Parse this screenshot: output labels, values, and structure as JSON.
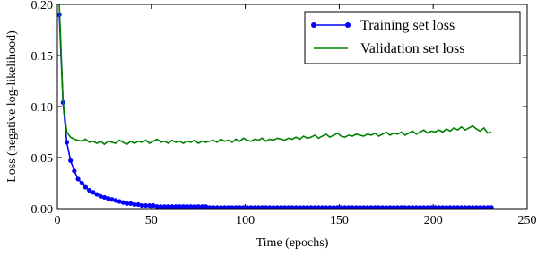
{
  "chart_data": {
    "type": "line",
    "xlabel": "Time (epochs)",
    "ylabel": "Loss (negative log-likelihood)",
    "x": [
      1,
      3,
      5,
      7,
      9,
      11,
      13,
      15,
      17,
      19,
      21,
      23,
      25,
      27,
      29,
      31,
      33,
      35,
      37,
      39,
      41,
      43,
      45,
      47,
      49,
      51,
      53,
      55,
      57,
      59,
      61,
      63,
      65,
      67,
      69,
      71,
      73,
      75,
      77,
      79,
      81,
      83,
      85,
      87,
      89,
      91,
      93,
      95,
      97,
      99,
      101,
      103,
      105,
      107,
      109,
      111,
      113,
      115,
      117,
      119,
      121,
      123,
      125,
      127,
      129,
      131,
      133,
      135,
      137,
      139,
      141,
      143,
      145,
      147,
      149,
      151,
      153,
      155,
      157,
      159,
      161,
      163,
      165,
      167,
      169,
      171,
      173,
      175,
      177,
      179,
      181,
      183,
      185,
      187,
      189,
      191,
      193,
      195,
      197,
      199,
      201,
      203,
      205,
      207,
      209,
      211,
      213,
      215,
      217,
      219,
      221,
      223,
      225,
      227,
      229,
      231
    ],
    "series": [
      {
        "name": "Training set loss",
        "color": "#0000ff",
        "marker": true,
        "values": [
          0.19,
          0.104,
          0.065,
          0.047,
          0.037,
          0.029,
          0.025,
          0.021,
          0.018,
          0.016,
          0.014,
          0.012,
          0.011,
          0.01,
          0.009,
          0.008,
          0.007,
          0.006,
          0.005,
          0.005,
          0.004,
          0.004,
          0.003,
          0.003,
          0.003,
          0.003,
          0.002,
          0.002,
          0.002,
          0.002,
          0.002,
          0.002,
          0.002,
          0.002,
          0.002,
          0.002,
          0.002,
          0.002,
          0.002,
          0.002,
          0.001,
          0.001,
          0.001,
          0.001,
          0.001,
          0.001,
          0.001,
          0.001,
          0.001,
          0.001,
          0.001,
          0.001,
          0.001,
          0.001,
          0.001,
          0.001,
          0.001,
          0.001,
          0.001,
          0.001,
          0.001,
          0.001,
          0.001,
          0.001,
          0.001,
          0.001,
          0.001,
          0.001,
          0.001,
          0.001,
          0.001,
          0.001,
          0.001,
          0.001,
          0.001,
          0.001,
          0.001,
          0.001,
          0.001,
          0.001,
          0.001,
          0.001,
          0.001,
          0.001,
          0.001,
          0.001,
          0.001,
          0.001,
          0.001,
          0.001,
          0.001,
          0.001,
          0.001,
          0.001,
          0.001,
          0.001,
          0.001,
          0.001,
          0.001,
          0.001,
          0.001,
          0.001,
          0.001,
          0.001,
          0.001,
          0.001,
          0.001,
          0.001,
          0.001,
          0.001,
          0.001,
          0.001,
          0.001,
          0.001,
          0.001,
          0.001
        ]
      },
      {
        "name": "Validation set loss",
        "color": "#008000",
        "marker": false,
        "values": [
          0.2,
          0.105,
          0.075,
          0.07,
          0.068,
          0.067,
          0.066,
          0.068,
          0.065,
          0.066,
          0.064,
          0.066,
          0.063,
          0.066,
          0.065,
          0.064,
          0.067,
          0.065,
          0.063,
          0.066,
          0.064,
          0.066,
          0.065,
          0.067,
          0.064,
          0.066,
          0.068,
          0.065,
          0.066,
          0.064,
          0.067,
          0.065,
          0.066,
          0.064,
          0.066,
          0.065,
          0.067,
          0.064,
          0.066,
          0.065,
          0.066,
          0.067,
          0.065,
          0.068,
          0.066,
          0.067,
          0.065,
          0.068,
          0.066,
          0.069,
          0.067,
          0.066,
          0.068,
          0.067,
          0.069,
          0.066,
          0.068,
          0.067,
          0.069,
          0.068,
          0.067,
          0.069,
          0.068,
          0.07,
          0.068,
          0.071,
          0.069,
          0.07,
          0.072,
          0.069,
          0.071,
          0.073,
          0.07,
          0.072,
          0.074,
          0.071,
          0.07,
          0.072,
          0.071,
          0.073,
          0.072,
          0.071,
          0.073,
          0.072,
          0.074,
          0.071,
          0.073,
          0.075,
          0.072,
          0.074,
          0.073,
          0.075,
          0.072,
          0.074,
          0.076,
          0.073,
          0.075,
          0.077,
          0.074,
          0.076,
          0.075,
          0.077,
          0.075,
          0.078,
          0.076,
          0.079,
          0.077,
          0.08,
          0.077,
          0.079,
          0.081,
          0.078,
          0.076,
          0.079,
          0.074,
          0.075
        ]
      }
    ],
    "xlim": [
      0,
      250
    ],
    "xticks": [
      0,
      50,
      100,
      150,
      200,
      250
    ],
    "ylim": [
      0,
      0.2
    ],
    "yticks": [
      {
        "value": 0,
        "label": "0.00"
      },
      {
        "value": 0.05,
        "label": "0.05"
      },
      {
        "value": 0.1,
        "label": "0.10"
      },
      {
        "value": 0.15,
        "label": "0.15"
      },
      {
        "value": 0.2,
        "label": "0.20"
      }
    ],
    "grid": false,
    "legend": "upper right"
  }
}
